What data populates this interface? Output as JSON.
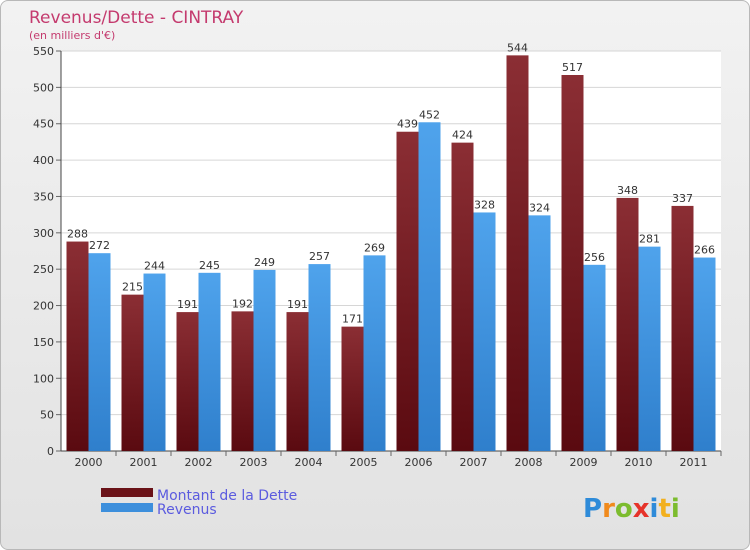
{
  "chart_data": {
    "type": "bar",
    "title": "Revenus/Dette - CINTRAY",
    "subtitle": "(en milliers d'€)",
    "categories": [
      "2000",
      "2001",
      "2002",
      "2003",
      "2004",
      "2005",
      "2006",
      "2007",
      "2008",
      "2009",
      "2010",
      "2011"
    ],
    "series": [
      {
        "name": "Montant de la Dette",
        "values": [
          288,
          215,
          191,
          192,
          191,
          171,
          439,
          424,
          544,
          517,
          348,
          337
        ],
        "color": "#7a1f25"
      },
      {
        "name": "Revenus",
        "values": [
          272,
          244,
          245,
          249,
          257,
          269,
          452,
          328,
          324,
          256,
          281,
          266
        ],
        "color": "#3d8fdc"
      }
    ],
    "ylim": [
      0,
      550
    ],
    "yticks": [
      0,
      50,
      100,
      150,
      200,
      250,
      300,
      350,
      400,
      450,
      500,
      550
    ],
    "grid": true,
    "legend": "bottom-left"
  },
  "logo": {
    "text": "Proxiti"
  }
}
